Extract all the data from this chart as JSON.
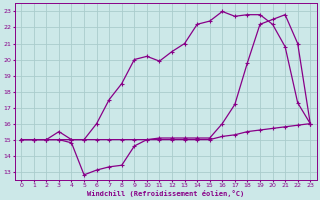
{
  "xlabel": "Windchill (Refroidissement éolien,°C)",
  "background_color": "#cce8e8",
  "grid_color": "#aacccc",
  "line_color": "#880088",
  "xlim": [
    -0.5,
    23.5
  ],
  "ylim": [
    12.5,
    23.5
  ],
  "xticks": [
    0,
    1,
    2,
    3,
    4,
    5,
    6,
    7,
    8,
    9,
    10,
    11,
    12,
    13,
    14,
    15,
    16,
    17,
    18,
    19,
    20,
    21,
    22,
    23
  ],
  "yticks": [
    13,
    14,
    15,
    16,
    17,
    18,
    19,
    20,
    21,
    22,
    23
  ],
  "line1_x": [
    0,
    1,
    2,
    3,
    4,
    5,
    6,
    7,
    8,
    9,
    10,
    11,
    12,
    13,
    14,
    15,
    16,
    17,
    18,
    19,
    20,
    21,
    22,
    23
  ],
  "line1_y": [
    15,
    15,
    15,
    15,
    15,
    15,
    15,
    15,
    15,
    15,
    15,
    15,
    15,
    15,
    15,
    15,
    15.2,
    15.3,
    15.5,
    15.6,
    15.7,
    15.8,
    15.9,
    16
  ],
  "line2_x": [
    0,
    1,
    2,
    3,
    4,
    5,
    6,
    7,
    8,
    9,
    10,
    11,
    12,
    13,
    14,
    15,
    16,
    17,
    18,
    19,
    20,
    21,
    22,
    23
  ],
  "line2_y": [
    15,
    15,
    15,
    15,
    14.8,
    12.8,
    13.1,
    13.3,
    13.4,
    14.6,
    15.0,
    15.1,
    15.1,
    15.1,
    15.1,
    15.1,
    16.0,
    17.2,
    19.8,
    22.2,
    22.5,
    22.8,
    21.0,
    16
  ],
  "line3_x": [
    0,
    1,
    2,
    3,
    4,
    5,
    6,
    7,
    8,
    9,
    10,
    11,
    12,
    13,
    14,
    15,
    16,
    17,
    18,
    19,
    20,
    21,
    22,
    23
  ],
  "line3_y": [
    15,
    15,
    15,
    15.5,
    15,
    15,
    16,
    17.5,
    18.5,
    20,
    20.2,
    19.9,
    20.5,
    21.0,
    22.2,
    22.4,
    23.0,
    22.7,
    22.8,
    22.8,
    22.2,
    20.8,
    17.3,
    16
  ]
}
